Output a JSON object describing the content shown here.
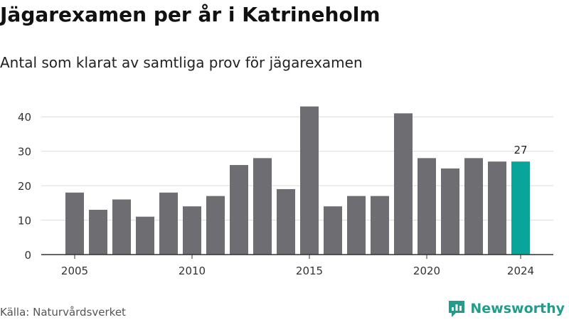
{
  "title": "Jägarexamen per år i Katrineholm",
  "subtitle": "Antal som klarat av samtliga prov för jägarexamen",
  "source": "Källa: Naturvårdsverket",
  "brand": "Newsworthy",
  "colors": {
    "bar": "#6e6d72",
    "highlight": "#0aa59a",
    "grid": "#dcdcdc",
    "axis": "#333333",
    "brand": "#1f9e8e"
  },
  "chart_data": {
    "type": "bar",
    "title": "",
    "xlabel": "",
    "ylabel": "",
    "categories": [
      2005,
      2006,
      2007,
      2008,
      2009,
      2010,
      2011,
      2012,
      2013,
      2014,
      2015,
      2016,
      2017,
      2018,
      2019,
      2020,
      2021,
      2022,
      2023,
      2024
    ],
    "values": [
      18,
      13,
      16,
      11,
      18,
      14,
      17,
      26,
      28,
      19,
      43,
      14,
      17,
      17,
      41,
      28,
      25,
      28,
      27,
      27
    ],
    "ylim": [
      0,
      45
    ],
    "yticks": [
      0,
      10,
      20,
      30,
      40
    ],
    "xticks": [
      "2005",
      "2010",
      "2015",
      "2020",
      "2024"
    ],
    "highlight": {
      "category": 2024,
      "label": "27"
    },
    "grid": true,
    "legend": "none"
  }
}
